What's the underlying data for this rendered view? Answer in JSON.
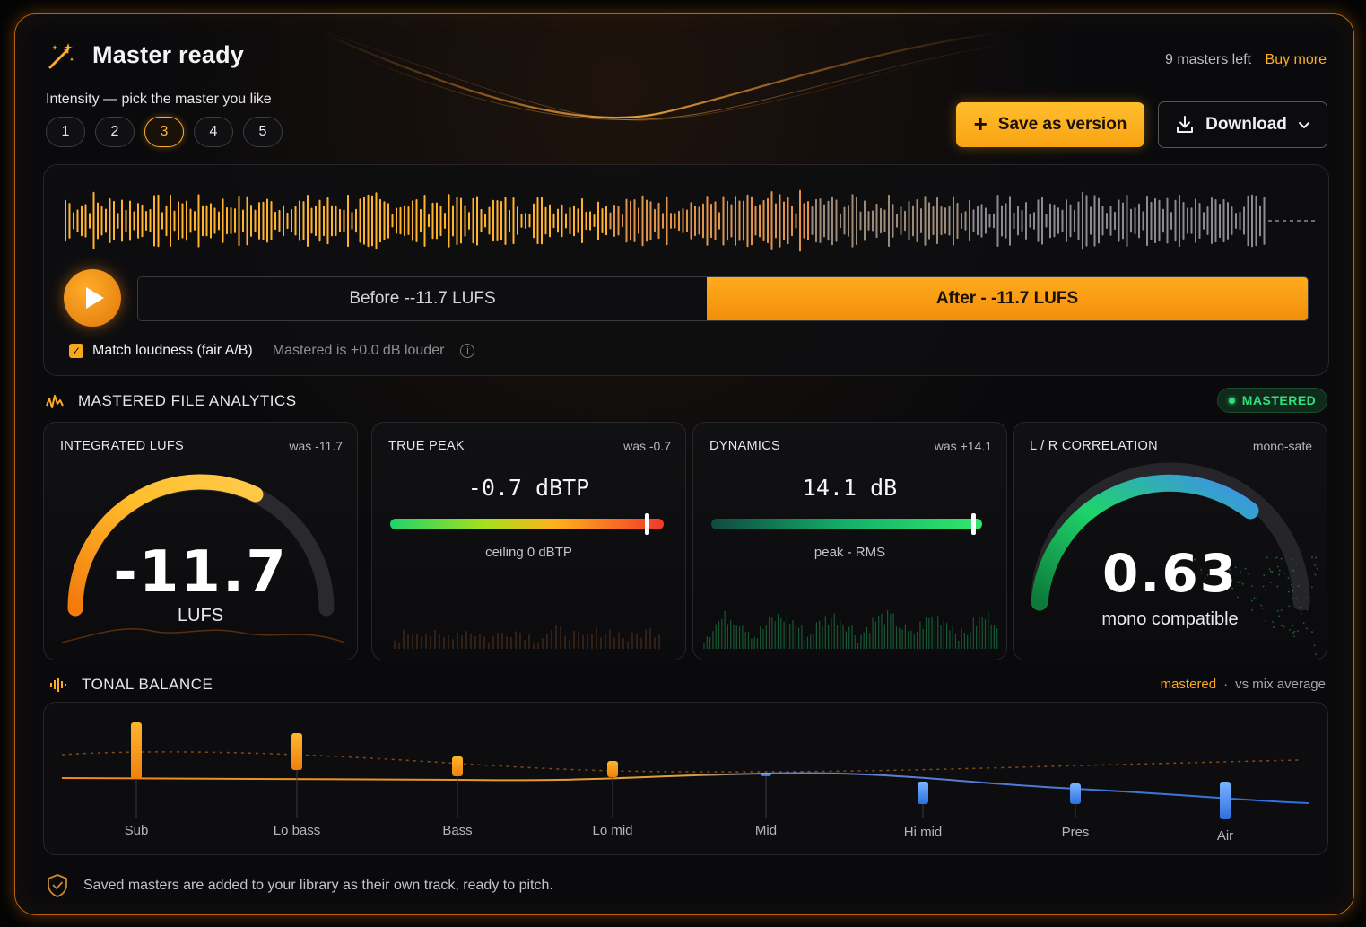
{
  "header": {
    "title": "Master ready",
    "intensity_label": "Intensity — pick the master you like",
    "intensity_options": [
      "1",
      "2",
      "3",
      "4",
      "5"
    ],
    "intensity_selected": "3",
    "masters_left": "9 masters left",
    "buy_more": "Buy more",
    "save_label": "Save as version",
    "download_label": "Download"
  },
  "player": {
    "before_label": "Before --11.7 LUFS",
    "after_label": "After - -11.7 LUFS",
    "match_loudness_label": "Match loudness (fair A/B)",
    "match_loudness_checked": true,
    "louder_text": "Mastered is +0.0 dB louder"
  },
  "analytics": {
    "section_title": "MASTERED FILE ANALYTICS",
    "status_badge": "MASTERED",
    "cards": {
      "lufs": {
        "title": "INTEGRATED LUFS",
        "was": "was -11.7",
        "value": "-11.7",
        "unit": "LUFS"
      },
      "peak": {
        "title": "TRUE PEAK",
        "was": "was -0.7",
        "value": "-0.7 dBTP",
        "sub": "ceiling 0 dBTP"
      },
      "dynamics": {
        "title": "DYNAMICS",
        "was": "was +14.1",
        "value": "14.1 dB",
        "sub": "peak - RMS"
      },
      "correlation": {
        "title": "L / R CORRELATION",
        "was": "mono-safe",
        "value": "0.63",
        "sub": "mono compatible"
      }
    }
  },
  "tonal": {
    "section_title": "TONAL BALANCE",
    "legend_mastered": "mastered",
    "legend_sep": "·",
    "legend_vs": "vs mix average",
    "bands": [
      "Sub",
      "Lo bass",
      "Bass",
      "Lo mid",
      "Mid",
      "Hi mid",
      "Pres",
      "Air"
    ]
  },
  "footer": {
    "text": "Saved masters are added to your library as their own track, ready to pitch."
  },
  "colors": {
    "accent": "#f9a313",
    "success": "#2fe07a",
    "cool": "#3f8ef0"
  },
  "icons": {
    "title": "magic-wand-icon",
    "analytics": "waveform-analytics-icon",
    "tonal": "equalizer-icon",
    "footer": "shield-check-icon"
  }
}
